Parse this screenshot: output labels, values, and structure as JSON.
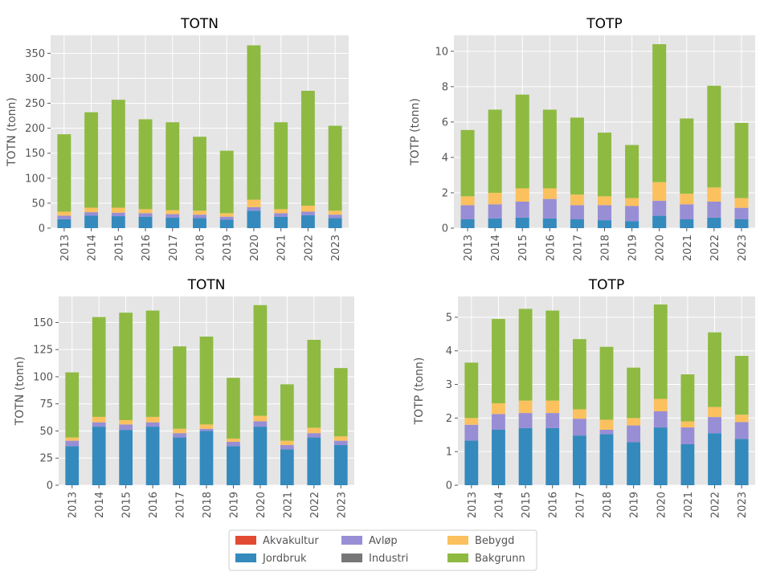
{
  "chart_data": [
    {
      "type": "bar",
      "stacked": true,
      "title": "TOTN",
      "y_label": "TOTN (tonn)",
      "categories": [
        "2013",
        "2014",
        "2015",
        "2016",
        "2017",
        "2018",
        "2019",
        "2020",
        "2021",
        "2022",
        "2023"
      ],
      "ylim": [
        0,
        386
      ],
      "yticks": [
        0,
        50,
        100,
        150,
        200,
        250,
        300,
        350
      ],
      "grid": true,
      "series": [
        {
          "name": "Akvakultur",
          "color": "#E24A33",
          "values": [
            0,
            0,
            0,
            0,
            0,
            0,
            0,
            0,
            0,
            0,
            0
          ]
        },
        {
          "name": "Jordbruk",
          "color": "#348ABD",
          "values": [
            18,
            25,
            24,
            23,
            21,
            20,
            17,
            35,
            23,
            26,
            20
          ]
        },
        {
          "name": "Avløp",
          "color": "#988ED5",
          "values": [
            7,
            7,
            7,
            7,
            7,
            7,
            6,
            7,
            7,
            7,
            7
          ]
        },
        {
          "name": "Industri",
          "color": "#777777",
          "values": [
            0,
            0,
            0,
            0,
            0,
            0,
            0,
            0,
            0,
            0,
            0
          ]
        },
        {
          "name": "Bebygd",
          "color": "#FBC15E",
          "values": [
            8,
            9,
            10,
            8,
            8,
            8,
            7,
            15,
            8,
            12,
            8
          ]
        },
        {
          "name": "Bakgrunn",
          "color": "#8EBA42",
          "values": [
            155,
            191,
            216,
            180,
            176,
            148,
            125,
            309,
            174,
            230,
            170
          ]
        }
      ]
    },
    {
      "type": "bar",
      "stacked": true,
      "title": "TOTP",
      "y_label": "TOTP (tonn)",
      "categories": [
        "2013",
        "2014",
        "2015",
        "2016",
        "2017",
        "2018",
        "2019",
        "2020",
        "2021",
        "2022",
        "2023"
      ],
      "ylim": [
        0,
        10.9
      ],
      "yticks": [
        0,
        2,
        4,
        6,
        8,
        10
      ],
      "grid": true,
      "series": [
        {
          "name": "Akvakultur",
          "color": "#E24A33",
          "values": [
            0,
            0,
            0,
            0,
            0,
            0,
            0,
            0,
            0,
            0,
            0
          ]
        },
        {
          "name": "Jordbruk",
          "color": "#348ABD",
          "values": [
            0.5,
            0.55,
            0.6,
            0.55,
            0.5,
            0.45,
            0.4,
            0.7,
            0.5,
            0.6,
            0.5
          ]
        },
        {
          "name": "Avløp",
          "color": "#988ED5",
          "values": [
            0.8,
            0.8,
            0.9,
            1.1,
            0.8,
            0.85,
            0.85,
            0.85,
            0.85,
            0.9,
            0.65
          ]
        },
        {
          "name": "Industri",
          "color": "#777777",
          "values": [
            0,
            0,
            0,
            0,
            0,
            0,
            0,
            0,
            0,
            0,
            0
          ]
        },
        {
          "name": "Bebygd",
          "color": "#FBC15E",
          "values": [
            0.5,
            0.65,
            0.75,
            0.6,
            0.6,
            0.5,
            0.45,
            1.05,
            0.6,
            0.8,
            0.55
          ]
        },
        {
          "name": "Bakgrunn",
          "color": "#8EBA42",
          "values": [
            3.75,
            4.7,
            5.3,
            4.45,
            4.35,
            3.6,
            3.0,
            7.8,
            4.25,
            5.75,
            4.25
          ]
        }
      ]
    },
    {
      "type": "bar",
      "stacked": true,
      "title": "TOTN",
      "y_label": "TOTN (tonn)",
      "categories": [
        "2013",
        "2014",
        "2015",
        "2016",
        "2017",
        "2018",
        "2019",
        "2020",
        "2021",
        "2022",
        "2023"
      ],
      "ylim": [
        0,
        174
      ],
      "yticks": [
        0,
        25,
        50,
        75,
        100,
        125,
        150
      ],
      "grid": true,
      "series": [
        {
          "name": "Akvakultur",
          "color": "#E24A33",
          "values": [
            0,
            0,
            0,
            0,
            0,
            0,
            0,
            0,
            0,
            0,
            0
          ]
        },
        {
          "name": "Jordbruk",
          "color": "#348ABD",
          "values": [
            36,
            54,
            51,
            54,
            44,
            50,
            36,
            54,
            33,
            44,
            37
          ]
        },
        {
          "name": "Avløp",
          "color": "#988ED5",
          "values": [
            5,
            4,
            5,
            4,
            4,
            2,
            4,
            5,
            4,
            4,
            4
          ]
        },
        {
          "name": "Industri",
          "color": "#777777",
          "values": [
            0,
            0,
            0,
            0,
            0,
            0,
            0,
            0,
            0,
            0,
            0
          ]
        },
        {
          "name": "Bebygd",
          "color": "#FBC15E",
          "values": [
            3,
            5,
            4,
            5,
            4,
            4,
            3,
            5,
            4,
            5,
            4
          ]
        },
        {
          "name": "Bakgrunn",
          "color": "#8EBA42",
          "values": [
            60,
            92,
            99,
            98,
            76,
            81,
            56,
            102,
            52,
            81,
            63
          ]
        }
      ]
    },
    {
      "type": "bar",
      "stacked": true,
      "title": "TOTP",
      "y_label": "TOTP (tonn)",
      "categories": [
        "2013",
        "2014",
        "2015",
        "2016",
        "2017",
        "2018",
        "2019",
        "2020",
        "2021",
        "2022",
        "2023"
      ],
      "ylim": [
        0,
        5.62
      ],
      "yticks": [
        0,
        1,
        2,
        3,
        4,
        5
      ],
      "grid": true,
      "series": [
        {
          "name": "Akvakultur",
          "color": "#E24A33",
          "values": [
            0,
            0,
            0,
            0,
            0,
            0,
            0,
            0,
            0,
            0,
            0
          ]
        },
        {
          "name": "Jordbruk",
          "color": "#348ABD",
          "values": [
            1.33,
            1.65,
            1.7,
            1.7,
            1.48,
            1.52,
            1.28,
            1.72,
            1.22,
            1.55,
            1.38
          ]
        },
        {
          "name": "Avløp",
          "color": "#988ED5",
          "values": [
            0.47,
            0.47,
            0.45,
            0.45,
            0.5,
            0.13,
            0.5,
            0.48,
            0.5,
            0.48,
            0.5
          ]
        },
        {
          "name": "Industri",
          "color": "#777777",
          "values": [
            0,
            0,
            0,
            0,
            0,
            0,
            0,
            0,
            0,
            0,
            0
          ]
        },
        {
          "name": "Bebygd",
          "color": "#FBC15E",
          "values": [
            0.2,
            0.32,
            0.37,
            0.37,
            0.28,
            0.3,
            0.22,
            0.37,
            0.18,
            0.3,
            0.22
          ]
        },
        {
          "name": "Bakgrunn",
          "color": "#8EBA42",
          "values": [
            1.65,
            2.51,
            2.73,
            2.68,
            2.09,
            2.17,
            1.5,
            2.81,
            1.4,
            2.22,
            1.75
          ]
        }
      ]
    }
  ]
}
